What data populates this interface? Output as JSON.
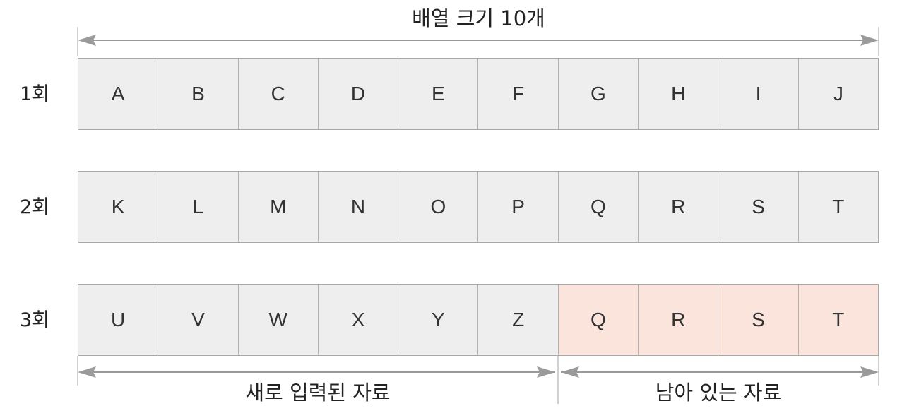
{
  "top_label": "배열 크기 10개",
  "rows": [
    {
      "label": "1회",
      "cells": [
        "A",
        "B",
        "C",
        "D",
        "E",
        "F",
        "G",
        "H",
        "I",
        "J"
      ]
    },
    {
      "label": "2회",
      "cells": [
        "K",
        "L",
        "M",
        "N",
        "O",
        "P",
        "Q",
        "R",
        "S",
        "T"
      ]
    },
    {
      "label": "3회",
      "cells": [
        "U",
        "V",
        "W",
        "X",
        "Y",
        "Z",
        "Q",
        "R",
        "S",
        "T"
      ],
      "highlighted_from_index": 6
    }
  ],
  "bottom_labels": {
    "new": "새로 입력된 자료",
    "remaining": "남아 있는 자료"
  },
  "colors": {
    "cell_fill": "#eeeeee",
    "remaining_fill": "#fae4dc",
    "border": "#a8a8a8",
    "arrow": "#9a9a9a"
  }
}
